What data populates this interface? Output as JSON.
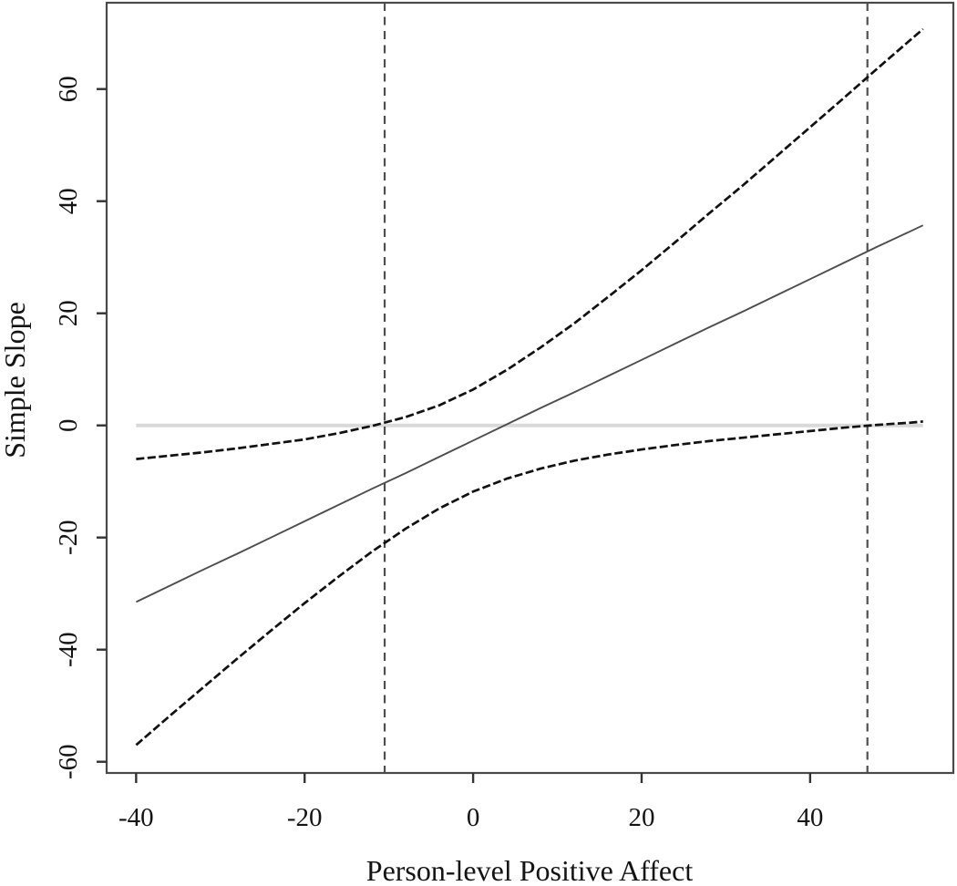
{
  "chart_data": {
    "type": "line",
    "title": "",
    "xlabel": "Person-level Positive Affect",
    "ylabel": "Simple Slope",
    "xlim": [
      -43.5,
      57.0
    ],
    "ylim": [
      -62.0,
      75.4
    ],
    "x_ticks": [
      -40,
      -20,
      0,
      20,
      40
    ],
    "y_ticks": [
      -60,
      -40,
      -20,
      0,
      20,
      40,
      60
    ],
    "grid": false,
    "legend_position": "none",
    "x": [
      -40,
      -36,
      -32,
      -28,
      -24,
      -20,
      -16,
      -12,
      -8,
      -4,
      0,
      4,
      8,
      12,
      16,
      20,
      24,
      28,
      32,
      36,
      40,
      44,
      48,
      52,
      53.4
    ],
    "series": [
      {
        "name": "simple_slope_estimate",
        "style": "solid",
        "color": "#4d4d4d",
        "width": 1.9,
        "values": [
          -31.5,
          -28.6,
          -25.7,
          -22.9,
          -20.0,
          -17.1,
          -14.2,
          -11.3,
          -8.5,
          -5.6,
          -2.7,
          0.2,
          3.1,
          5.9,
          8.8,
          11.7,
          14.6,
          17.5,
          20.3,
          23.2,
          26.1,
          29.0,
          31.9,
          34.7,
          35.7
        ]
      },
      {
        "name": "upper_95_ci",
        "style": "dashed",
        "color": "#111111",
        "width": 2.7,
        "values": [
          -6.0,
          -5.4,
          -4.8,
          -4.1,
          -3.3,
          -2.5,
          -1.4,
          -0.1,
          1.5,
          3.6,
          6.4,
          9.9,
          13.9,
          18.2,
          22.9,
          27.7,
          32.7,
          37.8,
          42.8,
          48.0,
          53.2,
          58.4,
          63.7,
          68.9,
          70.7
        ]
      },
      {
        "name": "lower_95_ci",
        "style": "dashed",
        "color": "#111111",
        "width": 2.7,
        "values": [
          -57.0,
          -51.8,
          -46.7,
          -41.6,
          -36.6,
          -31.7,
          -27.0,
          -22.5,
          -18.4,
          -14.8,
          -11.8,
          -9.5,
          -7.7,
          -6.3,
          -5.2,
          -4.3,
          -3.5,
          -2.8,
          -2.2,
          -1.6,
          -1.0,
          -0.4,
          0.1,
          0.5,
          0.7
        ]
      }
    ],
    "reference_lines": {
      "horizontal_zero": {
        "y": 0,
        "x_from": -40,
        "x_to": 53.4,
        "color": "#d9d9d9",
        "width": 4,
        "style": "solid"
      },
      "vertical_boundaries": [
        {
          "x": -10.5
        },
        {
          "x": 46.8
        }
      ],
      "vertical_style": {
        "color": "#4f4f4f",
        "width": 2.2,
        "dash": "9 6.5",
        "style": "dashed"
      }
    },
    "colors": {
      "text": "#141414",
      "border": "#4a4a4a",
      "tick": "#333333"
    }
  }
}
